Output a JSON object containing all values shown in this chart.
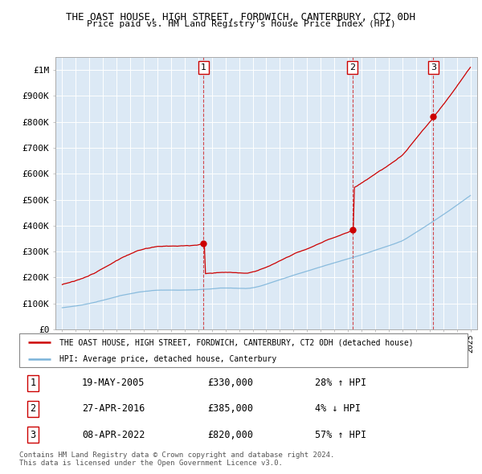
{
  "title1": "THE OAST HOUSE, HIGH STREET, FORDWICH, CANTERBURY, CT2 0DH",
  "title2": "Price paid vs. HM Land Registry's House Price Index (HPI)",
  "bg_color": "#dce9f5",
  "hpi_color": "#7ab3d9",
  "price_color": "#cc0000",
  "ylim": [
    0,
    1050000
  ],
  "yticks": [
    0,
    100000,
    200000,
    300000,
    400000,
    500000,
    600000,
    700000,
    800000,
    900000,
    1000000
  ],
  "ytick_labels": [
    "£0",
    "£100K",
    "£200K",
    "£300K",
    "£400K",
    "£500K",
    "£600K",
    "£700K",
    "£800K",
    "£900K",
    "£1M"
  ],
  "sale1_t": 2005.38,
  "sale1_price": 330000,
  "sale2_t": 2016.33,
  "sale2_price": 385000,
  "sale3_t": 2022.27,
  "sale3_price": 820000,
  "legend_line1": "THE OAST HOUSE, HIGH STREET, FORDWICH, CANTERBURY, CT2 0DH (detached house)",
  "legend_line2": "HPI: Average price, detached house, Canterbury",
  "table_data": [
    {
      "num": "1",
      "date": "19-MAY-2005",
      "price": "£330,000",
      "pct": "28% ↑ HPI"
    },
    {
      "num": "2",
      "date": "27-APR-2016",
      "price": "£385,000",
      "pct": "4% ↓ HPI"
    },
    {
      "num": "3",
      "date": "08-APR-2022",
      "price": "£820,000",
      "pct": "57% ↑ HPI"
    }
  ],
  "footnote": "Contains HM Land Registry data © Crown copyright and database right 2024.\nThis data is licensed under the Open Government Licence v3.0.",
  "xmin": 1994.5,
  "xmax": 2025.5
}
